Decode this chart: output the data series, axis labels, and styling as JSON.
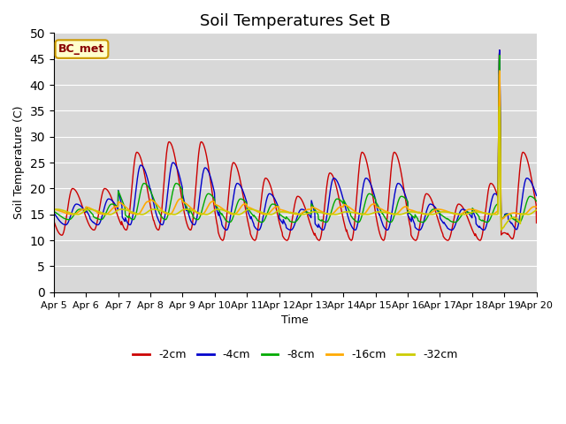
{
  "title": "Soil Temperatures Set B",
  "xlabel": "Time",
  "ylabel": "Soil Temperature (C)",
  "annotation": "BC_met",
  "ylim": [
    0,
    50
  ],
  "yticks": [
    0,
    5,
    10,
    15,
    20,
    25,
    30,
    35,
    40,
    45,
    50
  ],
  "xtick_labels": [
    "Apr 5",
    "Apr 6",
    "Apr 7",
    "Apr 8",
    "Apr 9",
    "Apr 10",
    "Apr 11",
    "Apr 12",
    "Apr 13",
    "Apr 14",
    "Apr 15",
    "Apr 16",
    "Apr 17",
    "Apr 18",
    "Apr 19",
    "Apr 20"
  ],
  "series_colors": [
    "#cc0000",
    "#0000cc",
    "#00aa00",
    "#ffaa00",
    "#cccc00"
  ],
  "series_labels": [
    "-2cm",
    "-4cm",
    "-8cm",
    "-16cm",
    "-32cm"
  ],
  "background_color": "#d8d8d8",
  "title_fontsize": 13,
  "label_fontsize": 9,
  "tick_fontsize": 8
}
